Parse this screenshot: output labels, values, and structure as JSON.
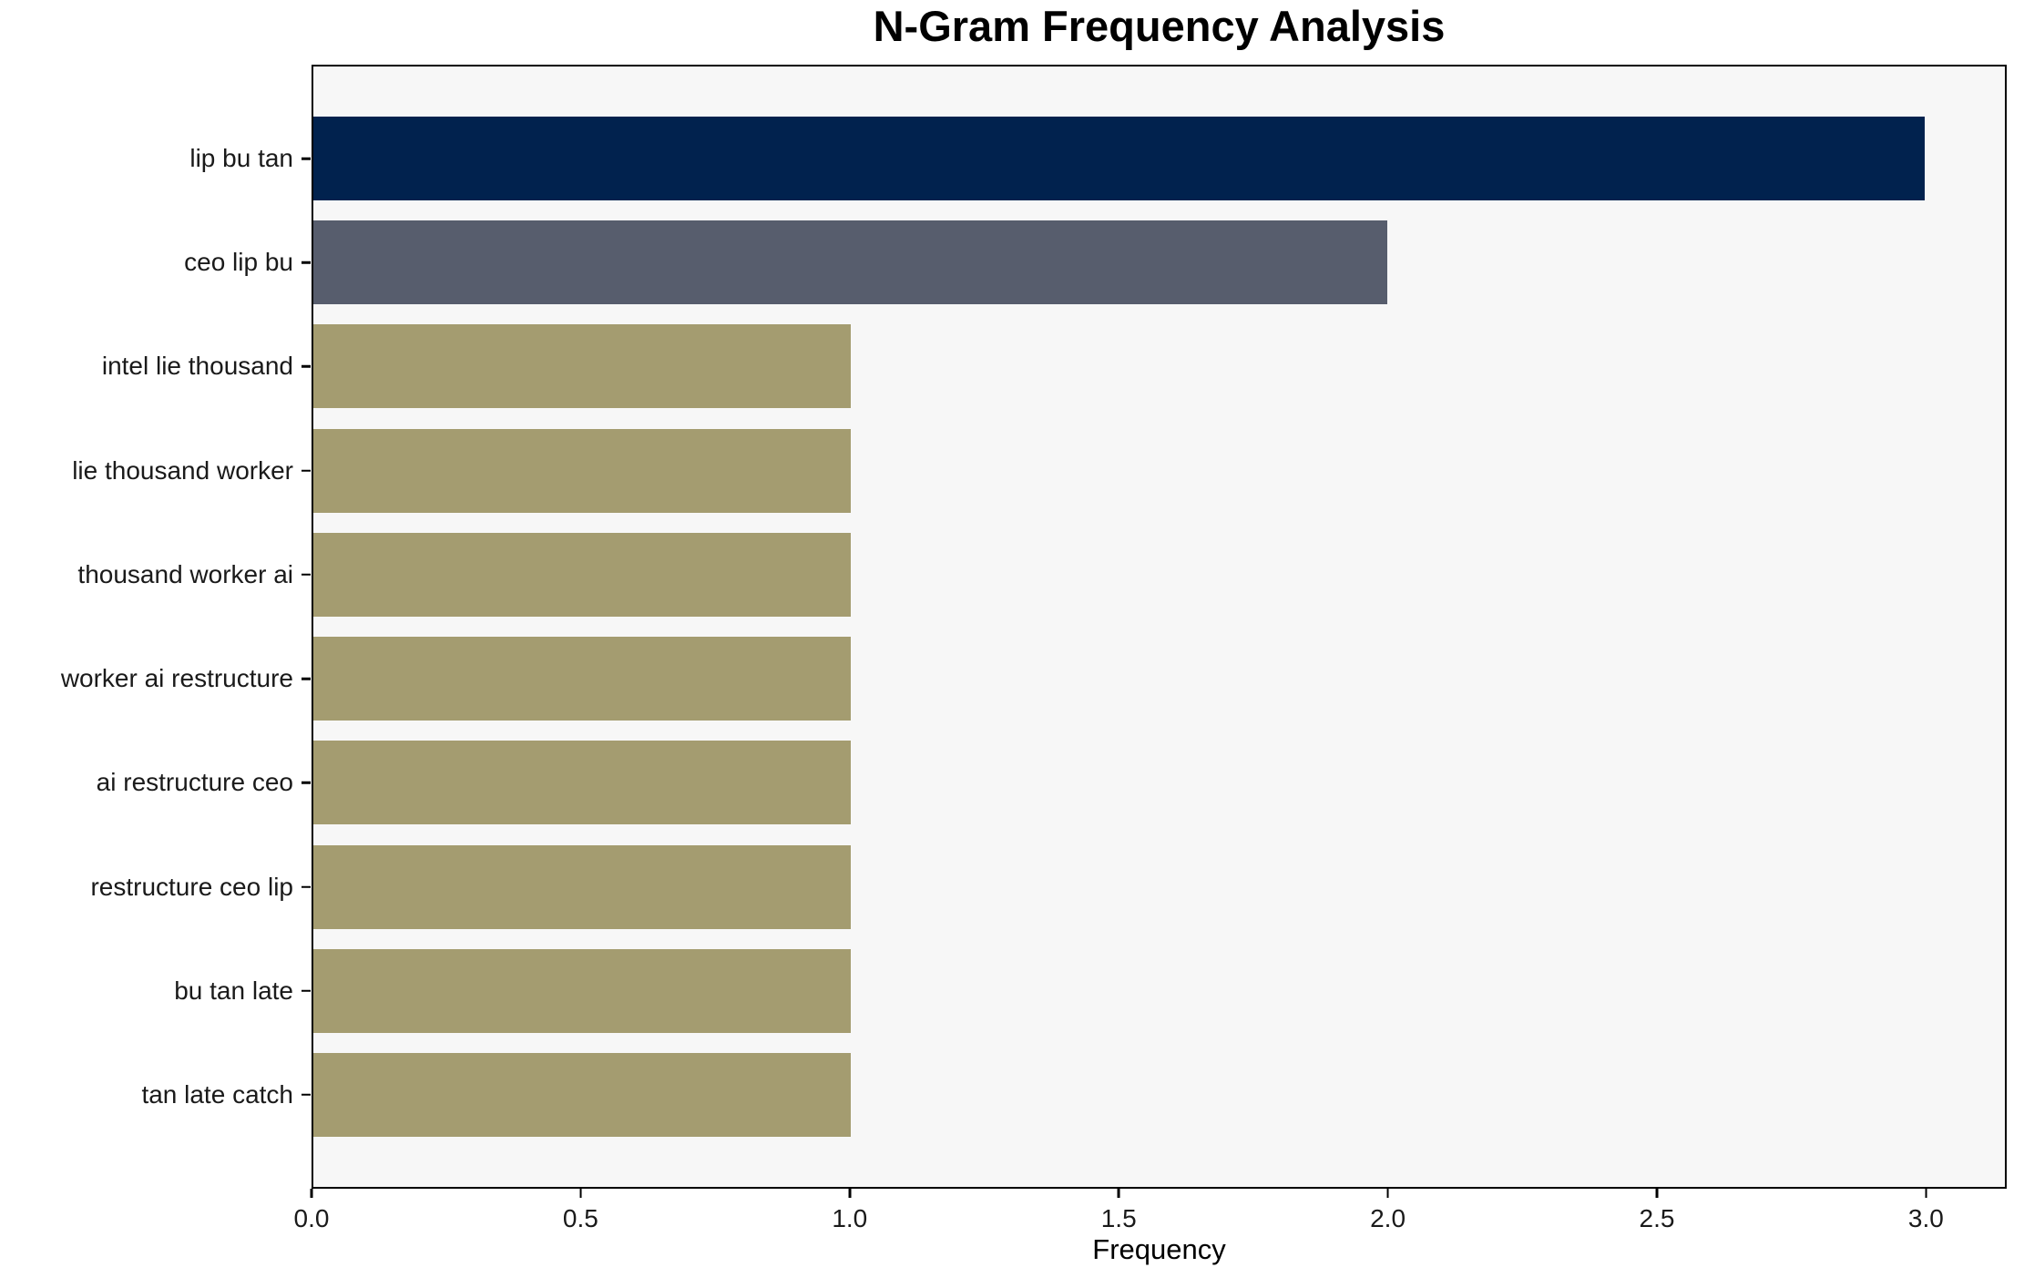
{
  "chart_data": {
    "type": "bar",
    "orientation": "horizontal",
    "title": "N-Gram Frequency Analysis",
    "xlabel": "Frequency",
    "ylabel": "",
    "categories": [
      "lip bu tan",
      "ceo lip bu",
      "intel lie thousand",
      "lie thousand worker",
      "thousand worker ai",
      "worker ai restructure",
      "ai restructure ceo",
      "restructure ceo lip",
      "bu tan late",
      "tan late catch"
    ],
    "values": [
      3,
      2,
      1,
      1,
      1,
      1,
      1,
      1,
      1,
      1
    ],
    "bar_colors": [
      "#01224e",
      "#575d6d",
      "#a49c70",
      "#a49c70",
      "#a49c70",
      "#a49c70",
      "#a49c70",
      "#a49c70",
      "#a49c70",
      "#a49c70"
    ],
    "xlim": [
      0,
      3.15
    ],
    "xticks": [
      0.0,
      0.5,
      1.0,
      1.5,
      2.0,
      2.5,
      3.0
    ],
    "xtick_labels": [
      "0.0",
      "0.5",
      "1.0",
      "1.5",
      "2.0",
      "2.5",
      "3.0"
    ],
    "grid": false,
    "legend": null,
    "colors": {
      "figure_background": "#ffffff",
      "plot_background": "#f7f7f7",
      "axis": "#000000",
      "tick_text": "#1a1a1a"
    }
  }
}
